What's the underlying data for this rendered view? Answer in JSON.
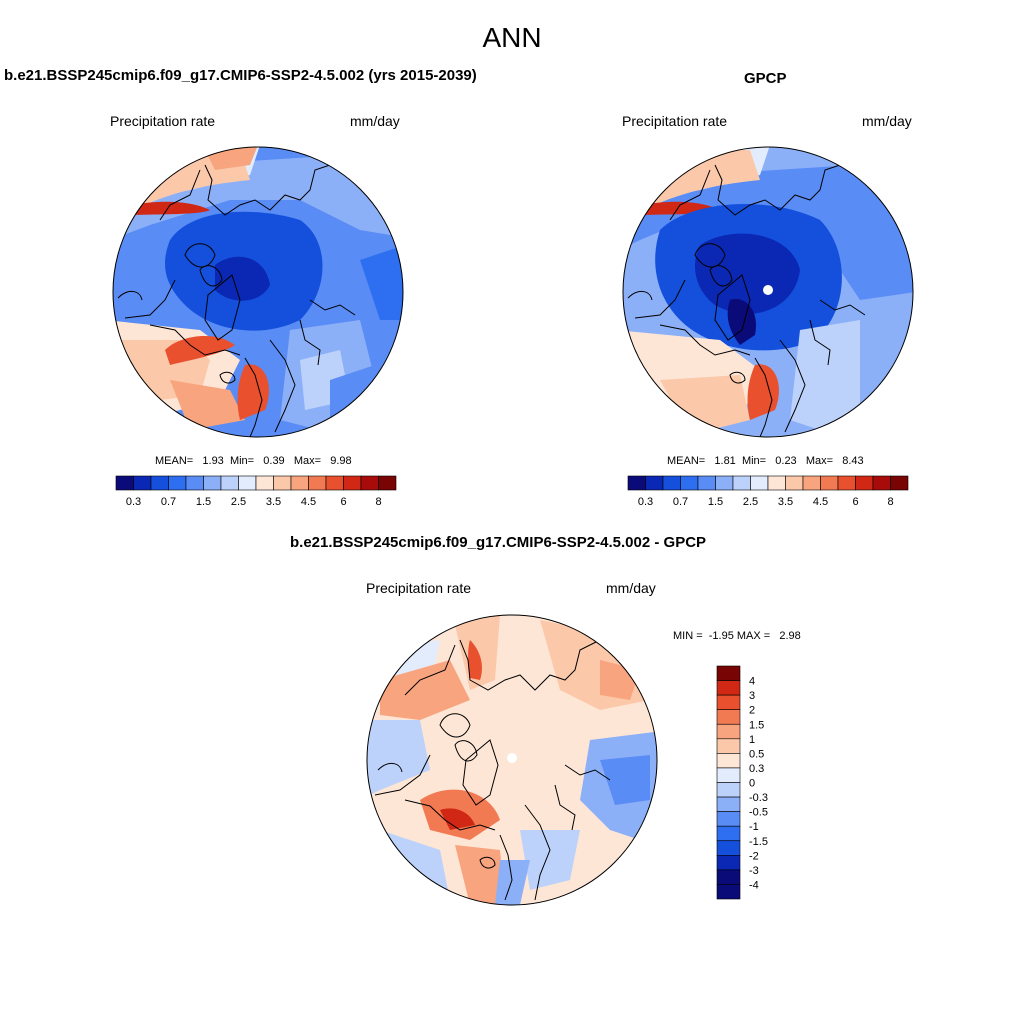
{
  "figure": {
    "title": "ANN"
  },
  "panels": [
    {
      "id": "model",
      "title": "b.e21.BSSP245cmip6.f09_g17.CMIP6-SSP2-4.5.002 (yrs 2015-2039)",
      "left_label": "Precipitation rate",
      "right_label": "mm/day",
      "stats": {
        "mean_label": "MEAN=",
        "mean": "1.93",
        "min_label": "Min=",
        "min": "0.39",
        "max_label": "Max=",
        "max": "9.98"
      }
    },
    {
      "id": "obs",
      "title": "GPCP",
      "left_label": "Precipitation rate",
      "right_label": "mm/day",
      "stats": {
        "mean_label": "MEAN=",
        "mean": "1.81",
        "min_label": "Min=",
        "min": "0.23",
        "max_label": "Max=",
        "max": "8.43"
      }
    },
    {
      "id": "diff",
      "title": "b.e21.BSSP245cmip6.f09_g17.CMIP6-SSP2-4.5.002 - GPCP",
      "left_label": "Precipitation rate",
      "right_label": "mm/day",
      "stats": {
        "text": "MIN =  -1.95 MAX =   2.98"
      }
    }
  ],
  "colorbars": {
    "abs": {
      "colors": [
        "#0a0a78",
        "#0a28b4",
        "#1450dc",
        "#2e6ef0",
        "#5a8cf5",
        "#8cb0f8",
        "#bcd2fb",
        "#e2ecfd",
        "#fde6d6",
        "#fbc8aa",
        "#f8a47e",
        "#f27a52",
        "#e8502e",
        "#d02814",
        "#a80c0a",
        "#780404"
      ],
      "tick_labels": [
        "0.3",
        "0.7",
        "1.5",
        "2.5",
        "3.5",
        "4.5",
        "6",
        "8"
      ]
    },
    "diff": {
      "colors": [
        "#0a0a78",
        "#0a28b4",
        "#1450dc",
        "#2e6ef0",
        "#5a8cf5",
        "#8cb0f8",
        "#bcd2fb",
        "#e2ecfd",
        "#fde6d6",
        "#fbc8aa",
        "#f8a47e",
        "#f27a52",
        "#e8502e",
        "#d02814",
        "#a80c0a"
      ],
      "tick_labels": [
        "4",
        "3",
        "2",
        "1.5",
        "1",
        "0.5",
        "0.3",
        "0",
        "-0.3",
        "-0.5",
        "-1",
        "-1.5",
        "-2",
        "-3",
        "-4"
      ]
    }
  }
}
